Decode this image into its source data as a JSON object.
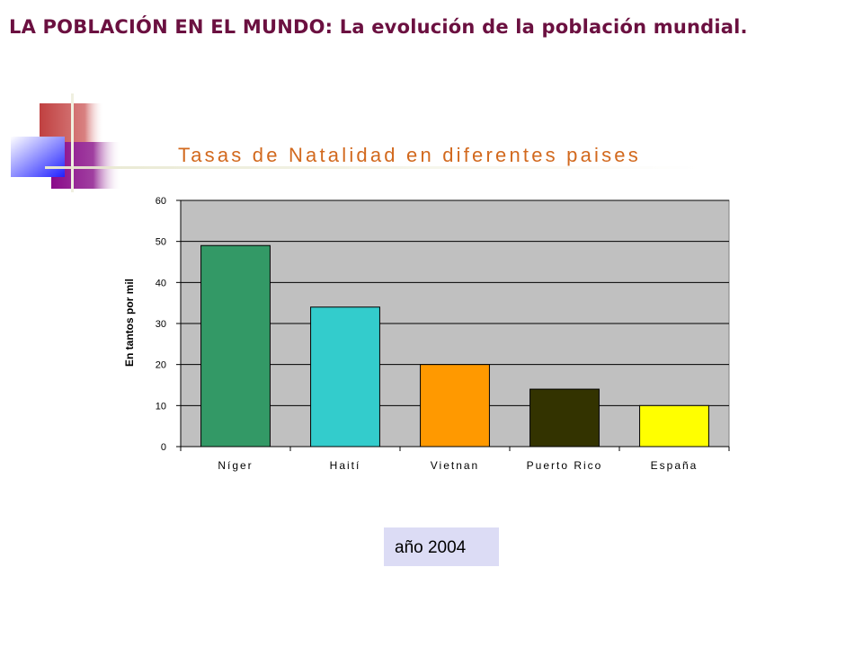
{
  "slide": {
    "title": "LA POBLACIÓN EN EL MUNDO: La evolución de la población mundial.",
    "year_note": "año 2004"
  },
  "colors": {
    "title": "#6b1040",
    "chart_title": "#d2691e",
    "plot_background": "#c0c0c0"
  },
  "chart_data": {
    "type": "bar",
    "title": "Tasas de Natalidad en diferentes paises",
    "xlabel": "",
    "ylabel": "En tantos por mil",
    "categories": [
      "Níger",
      "Haití",
      "Vietnan",
      "Puerto Rico",
      "España"
    ],
    "values": [
      49,
      34,
      20,
      14,
      10
    ],
    "colors": [
      "#339966",
      "#33cccc",
      "#ff9900",
      "#333300",
      "#ffff00"
    ],
    "ylim": [
      0,
      60
    ],
    "yticks": [
      0,
      10,
      20,
      30,
      40,
      50,
      60
    ],
    "grid": true,
    "legend": "none"
  }
}
